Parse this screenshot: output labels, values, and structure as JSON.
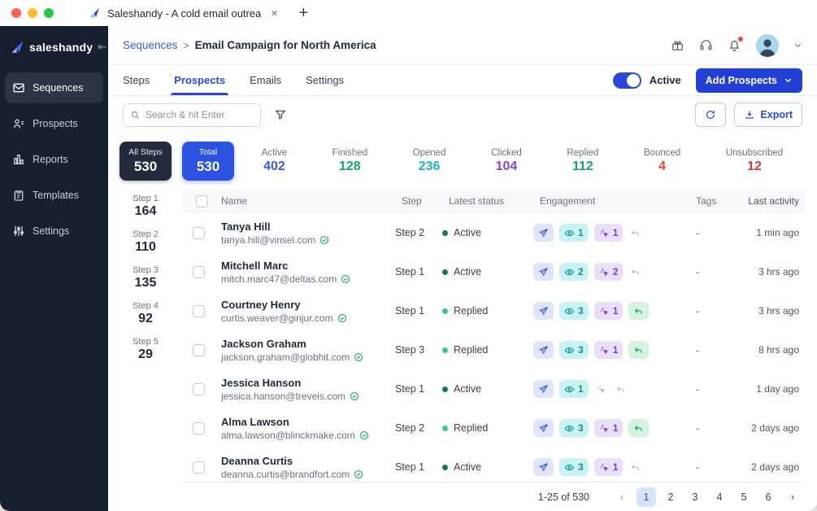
{
  "browser": {
    "tab_title": "Saleshandy - A cold email outrea",
    "close_label": "×",
    "new_tab_label": "+"
  },
  "colors": {
    "primary": "#2b47d9",
    "sidebar_bg": "#18202f",
    "active_status_dot": "#0f7a4d",
    "replied_status_dot": "#2fcb8e"
  },
  "sidebar": {
    "logo_text": "saleshandy",
    "collapse_glyph": "⇤",
    "items": [
      {
        "label": "Sequences",
        "icon": "envelope-icon",
        "active": true
      },
      {
        "label": "Prospects",
        "icon": "people-icon",
        "active": false
      },
      {
        "label": "Reports",
        "icon": "bar-chart-icon",
        "active": false
      },
      {
        "label": "Templates",
        "icon": "clipboard-icon",
        "active": false
      },
      {
        "label": "Settings",
        "icon": "sliders-icon",
        "active": false
      }
    ]
  },
  "header": {
    "breadcrumb_parent": "Sequences",
    "breadcrumb_separator": ">",
    "breadcrumb_current": "Email Campaign for North America"
  },
  "tabs": {
    "items": [
      {
        "label": "Steps",
        "active": false
      },
      {
        "label": "Prospects",
        "active": true
      },
      {
        "label": "Emails",
        "active": false
      },
      {
        "label": "Settings",
        "active": false
      }
    ],
    "toggle_label": "Active",
    "toggle_on": true,
    "add_button_label": "Add Prospects"
  },
  "toolbar": {
    "search_placeholder": "Search & hit Enter",
    "export_label": "Export"
  },
  "stats": {
    "cards": [
      {
        "label": "All Steps",
        "value": "530",
        "style": "dark"
      },
      {
        "label": "Total",
        "value": "530",
        "style": "primary"
      },
      {
        "label": "Active",
        "value": "402",
        "color": "#3b5bdb"
      },
      {
        "label": "Finished",
        "value": "128",
        "color": "#12a370"
      },
      {
        "label": "Opened",
        "value": "236",
        "color": "#17b5c8"
      },
      {
        "label": "Clicked",
        "value": "104",
        "color": "#8344de"
      },
      {
        "label": "Replied",
        "value": "112",
        "color": "#12a370"
      },
      {
        "label": "Bounced",
        "value": "4",
        "color": "#dc4b32"
      },
      {
        "label": "Unsubscribed",
        "value": "12",
        "color": "#d63a32"
      }
    ]
  },
  "steps_summary": [
    {
      "label": "Step 1",
      "value": "164"
    },
    {
      "label": "Step 2",
      "value": "110"
    },
    {
      "label": "Step 3",
      "value": "135"
    },
    {
      "label": "Step 4",
      "value": "92"
    },
    {
      "label": "Step 5",
      "value": "29"
    }
  ],
  "table": {
    "columns": [
      "Name",
      "Step",
      "Latest status",
      "Engagement",
      "Tags",
      "Last activity"
    ],
    "rows": [
      {
        "name": "Tanya Hill",
        "email": "tanya.hill@vinsel.com",
        "verified": true,
        "step": "Step 2",
        "status": "Active",
        "status_color": "#0f7a4d",
        "opened": 1,
        "clicked": 1,
        "replied": false,
        "tags": "-",
        "last_activity": "1 min ago"
      },
      {
        "name": "Mitchell Marc",
        "email": "mitch.marc47@deltas.com",
        "verified": true,
        "step": "Step 1",
        "status": "Active",
        "status_color": "#0f7a4d",
        "opened": 2,
        "clicked": 2,
        "replied": false,
        "tags": "-",
        "last_activity": "3 hrs ago"
      },
      {
        "name": "Courtney Henry",
        "email": "curtis.weaver@ginjur.com",
        "verified": true,
        "step": "Step 1",
        "status": "Replied",
        "status_color": "#2fcb8e",
        "opened": 3,
        "clicked": 1,
        "replied": true,
        "tags": "-",
        "last_activity": "3 hrs ago"
      },
      {
        "name": "Jackson Graham",
        "email": "jackson.graham@globhit.com",
        "verified": true,
        "step": "Step 3",
        "status": "Replied",
        "status_color": "#2fcb8e",
        "opened": 3,
        "clicked": 1,
        "replied": true,
        "tags": "-",
        "last_activity": "8 hrs ago"
      },
      {
        "name": "Jessica Hanson",
        "email": "jessica.hanson@treveis.com",
        "verified": true,
        "step": "Step 1",
        "status": "Active",
        "status_color": "#0f7a4d",
        "opened": 1,
        "clicked": 0,
        "replied": false,
        "tags": "-",
        "last_activity": "1 day ago"
      },
      {
        "name": "Alma Lawson",
        "email": "alma.lawson@blinckmake.com",
        "verified": true,
        "step": "Step 2",
        "status": "Replied",
        "status_color": "#2fcb8e",
        "opened": 3,
        "clicked": 1,
        "replied": true,
        "tags": "-",
        "last_activity": "2 days ago"
      },
      {
        "name": "Deanna Curtis",
        "email": "deanna.curtis@brandfort.com",
        "verified": true,
        "step": "Step 1",
        "status": "Active",
        "status_color": "#0f7a4d",
        "opened": 3,
        "clicked": 1,
        "replied": false,
        "tags": "-",
        "last_activity": "2 days ago"
      }
    ]
  },
  "pagination": {
    "range_text": "1-25 of 530",
    "prev_glyph": "‹",
    "next_glyph": "›",
    "pages": [
      "1",
      "2",
      "3",
      "4",
      "5",
      "6"
    ],
    "active_page": "1"
  }
}
